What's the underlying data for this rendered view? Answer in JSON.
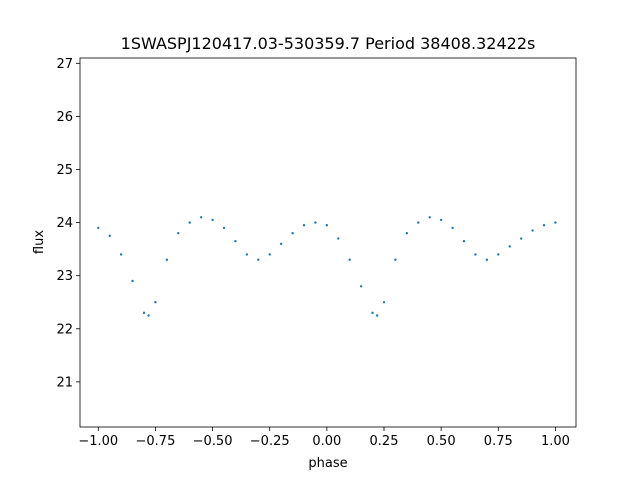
{
  "chart_data": {
    "type": "scatter",
    "title": "1SWASPJ120417.03-530359.7 Period 38408.32422s",
    "xlabel": "phase",
    "ylabel": "flux",
    "xlim": [
      -1.08,
      1.09
    ],
    "ylim": [
      20.15,
      27.1
    ],
    "xticks": [
      -1.0,
      -0.75,
      -0.5,
      -0.25,
      0.0,
      0.25,
      0.5,
      0.75,
      1.0
    ],
    "xtick_labels": [
      "−1.00",
      "−0.75",
      "−0.50",
      "−0.25",
      "0.00",
      "0.25",
      "0.50",
      "0.75",
      "1.00"
    ],
    "yticks": [
      21,
      22,
      23,
      24,
      25,
      26,
      27
    ],
    "ytick_labels": [
      "21",
      "22",
      "23",
      "24",
      "25",
      "26",
      "27"
    ],
    "grid": false,
    "series": [
      {
        "color": "#1f77b4",
        "x": [
          -1.0,
          -0.95,
          -0.9,
          -0.85,
          -0.8,
          -0.78,
          -0.75,
          -0.7,
          -0.65,
          -0.6,
          -0.55,
          -0.5,
          -0.45,
          -0.4,
          -0.35,
          -0.3,
          -0.25,
          -0.2,
          -0.15,
          -0.1,
          -0.05,
          0.0,
          0.05,
          0.1,
          0.15,
          0.2,
          0.22,
          0.25,
          0.3,
          0.35,
          0.4,
          0.45,
          0.5,
          0.55,
          0.6,
          0.65,
          0.7,
          0.75,
          0.8,
          0.85,
          0.9,
          0.95,
          1.0
        ],
        "y": [
          23.9,
          23.75,
          23.4,
          22.9,
          22.3,
          22.25,
          22.5,
          23.3,
          23.8,
          24.0,
          24.1,
          24.05,
          23.9,
          23.65,
          23.4,
          23.3,
          23.4,
          23.6,
          23.8,
          23.95,
          24.0,
          23.95,
          23.7,
          23.3,
          22.8,
          22.3,
          22.25,
          22.5,
          23.3,
          23.8,
          24.0,
          24.1,
          24.05,
          23.9,
          23.65,
          23.4,
          23.3,
          23.4,
          23.55,
          23.7,
          23.85,
          23.95,
          24.0
        ]
      }
    ]
  }
}
